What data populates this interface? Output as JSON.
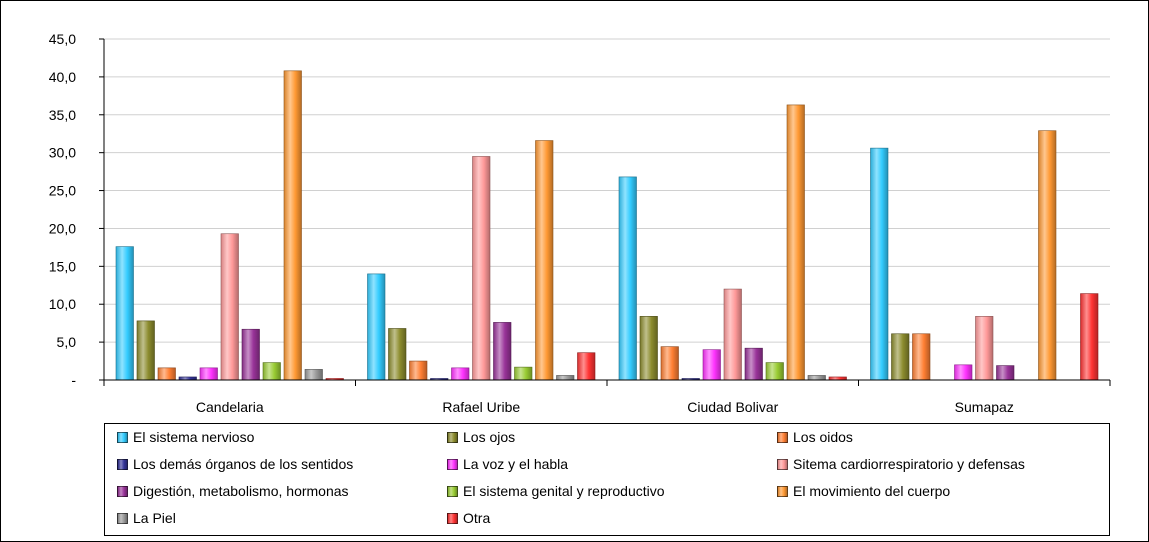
{
  "chart_data": {
    "type": "bar",
    "title": "",
    "xlabel": "",
    "ylabel": "",
    "ylim": [
      0,
      45
    ],
    "y_ticks": [
      "-",
      "5,0",
      "10,0",
      "15,0",
      "20,0",
      "25,0",
      "30,0",
      "35,0",
      "40,0",
      "45,0"
    ],
    "categories": [
      "Candelaria",
      "Rafael Uribe",
      "Ciudad Bolivar",
      "Sumapaz"
    ],
    "grid": true,
    "legend_position": "bottom",
    "series": [
      {
        "name": "El sistema nervioso",
        "color": "#33CCFF",
        "values": [
          17.6,
          14.0,
          26.8,
          30.6
        ]
      },
      {
        "name": "Los ojos",
        "color": "#8C8C2E",
        "values": [
          7.8,
          6.8,
          8.4,
          6.1
        ]
      },
      {
        "name": "Los oidos",
        "color": "#FF7F33",
        "values": [
          1.6,
          2.5,
          4.4,
          6.1
        ]
      },
      {
        "name": "Los demás órganos de los sentidos",
        "color": "#333399",
        "values": [
          0.4,
          0.2,
          0.2,
          0.0
        ]
      },
      {
        "name": "La voz y el habla",
        "color": "#FF33FF",
        "values": [
          1.6,
          1.6,
          4.0,
          2.0
        ]
      },
      {
        "name": "Sitema cardiorrespiratorio y  defensas",
        "color": "#FF9999",
        "values": [
          19.3,
          29.5,
          12.0,
          8.4
        ]
      },
      {
        "name": "Digestión, metabolismo,  hormonas",
        "color": "#993399",
        "values": [
          6.7,
          7.6,
          4.2,
          1.9
        ]
      },
      {
        "name": "El sistema genital y reproductivo",
        "color": "#99CC33",
        "values": [
          2.3,
          1.7,
          2.3,
          0.0
        ]
      },
      {
        "name": "El movimiento del cuerpo",
        "color": "#FF9933",
        "values": [
          40.8,
          31.6,
          36.3,
          32.9
        ]
      },
      {
        "name": "La Piel",
        "color": "#999999",
        "values": [
          1.4,
          0.6,
          0.6,
          0.0
        ]
      },
      {
        "name": "Otra",
        "color": "#FF3333",
        "values": [
          0.2,
          3.6,
          0.4,
          11.4
        ]
      }
    ]
  }
}
